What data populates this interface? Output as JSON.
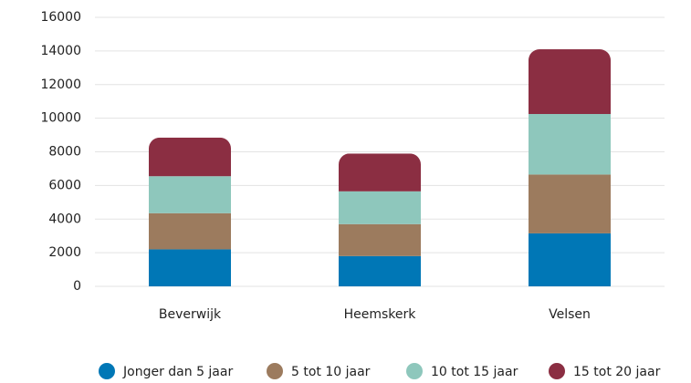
{
  "chart_data": {
    "type": "stacked_bar",
    "categories": [
      "Beverwijk",
      "Heemskerk",
      "Velsen"
    ],
    "series": [
      {
        "name": "Jonger dan 5 jaar",
        "color": "#0077b6",
        "values": [
          2200,
          1800,
          3150
        ]
      },
      {
        "name": "5 tot 10 jaar",
        "color": "#9c7b5e",
        "values": [
          2150,
          1900,
          3500
        ]
      },
      {
        "name": "10 tot 15 jaar",
        "color": "#8ec7bc",
        "values": [
          2200,
          1950,
          3600
        ]
      },
      {
        "name": "15 tot 20 jaar",
        "color": "#8b2e42",
        "values": [
          2300,
          2250,
          3850
        ]
      }
    ],
    "ylim": [
      0,
      16000
    ],
    "yticks": [
      0,
      2000,
      4000,
      6000,
      8000,
      10000,
      12000,
      14000,
      16000
    ],
    "grid": true,
    "legend": "bottom"
  }
}
